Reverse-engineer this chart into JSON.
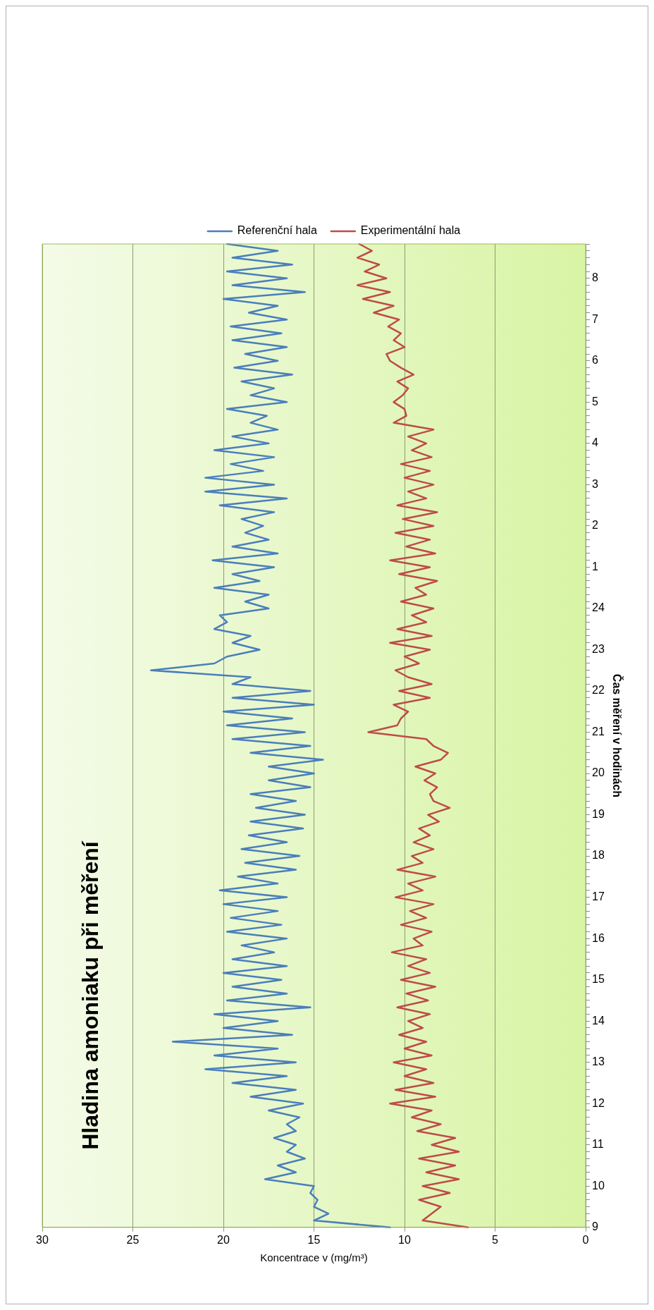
{
  "chart_data": {
    "type": "line",
    "orientation": "horizontal",
    "title": "Hladina amoniaku při měření",
    "xlabel": "Koncentrace v (mg/m³)",
    "ylabel": "Čas měření v hodinách",
    "categories": [
      null,
      null,
      null,
      null,
      null,
      "8",
      null,
      null,
      null,
      null,
      null,
      "7",
      null,
      null,
      null,
      null,
      null,
      "6",
      null,
      null,
      null,
      null,
      null,
      "5",
      null,
      null,
      null,
      null,
      null,
      "4",
      null,
      null,
      null,
      null,
      null,
      "3",
      null,
      null,
      null,
      null,
      null,
      "2",
      null,
      null,
      null,
      null,
      null,
      "1",
      null,
      null,
      null,
      null,
      null,
      "24",
      null,
      null,
      null,
      null,
      null,
      "23",
      null,
      null,
      null,
      null,
      null,
      "22",
      null,
      null,
      null,
      null,
      null,
      "21",
      null,
      null,
      null,
      null,
      null,
      "20",
      null,
      null,
      null,
      null,
      null,
      "19",
      null,
      null,
      null,
      null,
      null,
      "18",
      null,
      null,
      null,
      null,
      null,
      "17",
      null,
      null,
      null,
      null,
      null,
      "16",
      null,
      null,
      null,
      null,
      null,
      "15",
      null,
      null,
      null,
      null,
      null,
      "14",
      null,
      null,
      null,
      null,
      null,
      "13",
      null,
      null,
      null,
      null,
      null,
      "12",
      null,
      null,
      null,
      null,
      null,
      "11",
      null,
      null,
      null,
      null,
      null,
      "10",
      null,
      null,
      null,
      null,
      null,
      "9"
    ],
    "series": [
      {
        "name": "Referenční hala",
        "color": "#4a7ebb",
        "values": [
          19.8,
          17,
          19.5,
          16.2,
          19.8,
          16.5,
          19.5,
          15.5,
          20,
          17,
          18.6,
          16.5,
          19.6,
          16.8,
          19.5,
          16.5,
          18.8,
          17,
          19.4,
          16.2,
          19,
          17.2,
          18.5,
          16.5,
          19.8,
          17.6,
          18.5,
          17,
          19.5,
          17.5,
          20.5,
          17.2,
          19.6,
          17.8,
          21,
          17.2,
          21,
          16.5,
          20.2,
          17.2,
          19,
          17.8,
          18.8,
          17.5,
          19.5,
          17,
          20.6,
          17.2,
          19.5,
          18,
          20.5,
          17.5,
          18.8,
          17.5,
          20.2,
          19.8,
          20.5,
          18.5,
          19.5,
          18,
          19.8,
          20.5,
          24,
          18.5,
          19.5,
          15.2,
          19.5,
          15,
          20,
          16.2,
          19.8,
          15.5,
          19.5,
          15.2,
          18.5,
          14.5,
          17.5,
          15,
          17.5,
          15.2,
          18.5,
          16,
          18.2,
          15.5,
          18.5,
          15.6,
          18.6,
          16.5,
          19,
          15.8,
          18.8,
          16,
          19.2,
          17,
          20.2,
          16.5,
          20,
          17,
          19.6,
          16.8,
          19.8,
          16.5,
          19,
          17.2,
          19.5,
          16.5,
          20,
          16.8,
          19.5,
          16.5,
          19.8,
          15.2,
          20.5,
          17,
          20,
          16.2,
          22.8,
          17,
          20.5,
          16,
          21,
          16.5,
          19.5,
          16,
          18.5,
          15.6,
          17.5,
          15.8,
          16.5,
          16,
          17.2,
          16,
          16.5,
          15.5,
          17,
          16,
          17.7,
          15,
          15.2,
          14.8,
          15,
          14.2,
          15,
          10.8
        ]
      },
      {
        "name": "Experimentální hala",
        "color": "#be4b48",
        "values": [
          12.5,
          11.8,
          12.6,
          11.4,
          12.2,
          11,
          12.6,
          10.8,
          12.3,
          10.6,
          11.7,
          10.3,
          10.9,
          10.2,
          10.6,
          10,
          11,
          10.8,
          10.2,
          9.5,
          10.4,
          9.8,
          10.1,
          10.6,
          10,
          9.9,
          10.6,
          8.4,
          9.8,
          8.8,
          9.6,
          8.5,
          10.2,
          8.6,
          10,
          8.4,
          9.8,
          8.8,
          10.4,
          8.2,
          10.1,
          8.4,
          10.5,
          8.6,
          9.9,
          8.3,
          10.8,
          8.6,
          10.3,
          8.2,
          9.4,
          8.8,
          10.2,
          8.4,
          9.6,
          8.8,
          10.4,
          8.5,
          10.8,
          8.6,
          10,
          9.2,
          10.5,
          9.8,
          8.5,
          10.3,
          8.6,
          10.6,
          9.8,
          10.2,
          10.4,
          12,
          8.8,
          8.4,
          7.6,
          8,
          9.4,
          8.3,
          8.9,
          8.2,
          8.6,
          8.4,
          7.5,
          8.7,
          8.1,
          9.2,
          8.6,
          9.5,
          8.4,
          9.6,
          9,
          10.4,
          8.3,
          9.8,
          9,
          10.5,
          8.4,
          9.7,
          8.8,
          10.2,
          8.5,
          9.5,
          9,
          10.7,
          8.8,
          9.8,
          8.6,
          10.2,
          8.3,
          9.9,
          8.7,
          10.4,
          8.6,
          9.8,
          9,
          10.3,
          8.8,
          10,
          8.5,
          10.6,
          8.8,
          10,
          8.4,
          10.5,
          8.3,
          10.8,
          8.5,
          9.6,
          8,
          9.3,
          7.2,
          8.5,
          7,
          9.2,
          7.2,
          8.8,
          7,
          9,
          7.5,
          9.2,
          8,
          8.5,
          9,
          6.5
        ]
      }
    ],
    "xlim": [
      30,
      0
    ],
    "xticks": [
      30,
      25,
      20,
      15,
      10,
      5,
      0
    ],
    "grid": "x",
    "legend": "top",
    "marker": "none",
    "line_style": "solid"
  }
}
